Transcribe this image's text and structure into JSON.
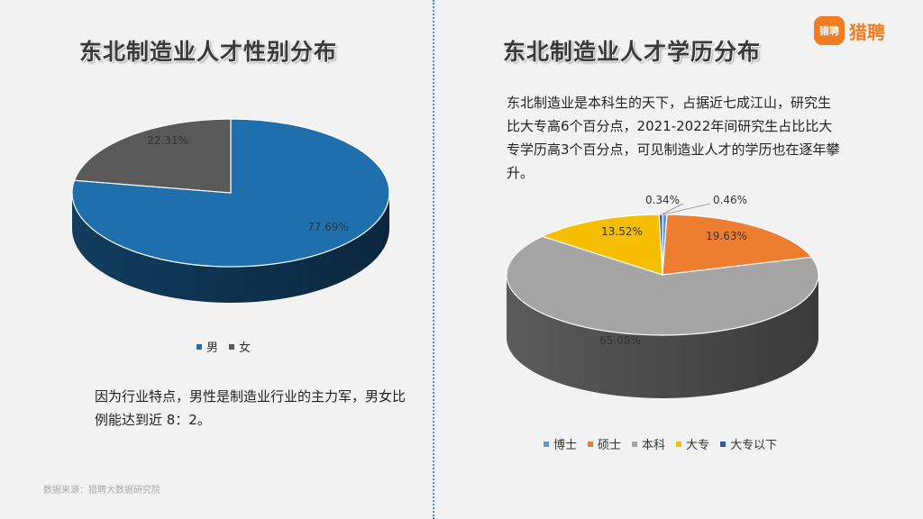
{
  "left": {
    "title": "东北制造业人才性别分布",
    "description": "因为行业特点，男性是制造业行业的主力军，男女比例能达到近 8：2。"
  },
  "right": {
    "title": "东北制造业人才学历分布",
    "description": "东北制造业是本科生的天下，占据近七成江山，研究生比大专高6个百分点，2021-2022年间研究生占比比大专学历高3个百分点，可见制造业人才的学历也在逐年攀升。"
  },
  "logo": {
    "badge": "猎聘",
    "text": "猎聘",
    "color": "#f07d22"
  },
  "source": "数据来源：猎聘大数据研究院",
  "chart_data": [
    {
      "type": "pie",
      "title": "东北制造业人才性别分布",
      "categories": [
        "男",
        "女"
      ],
      "values": [
        77.69,
        22.31
      ],
      "labels": [
        "77.69%",
        "22.31%"
      ],
      "colors": [
        "#1f6fad",
        "#595959"
      ],
      "legend": "bottom",
      "style": "3d"
    },
    {
      "type": "pie",
      "title": "东北制造业人才学历分布",
      "categories": [
        "博士",
        "硕士",
        "本科",
        "大专",
        "大专以下"
      ],
      "values": [
        0.46,
        19.63,
        65.08,
        13.52,
        0.34
      ],
      "labels": [
        "0.46%",
        "19.63%",
        "65.08%",
        "13.52%",
        "0.34%"
      ],
      "colors": [
        "#5b9bd5",
        "#ed7d31",
        "#a5a5a5",
        "#f5be00",
        "#2e5aa6"
      ],
      "legend": "bottom",
      "style": "3d"
    }
  ]
}
